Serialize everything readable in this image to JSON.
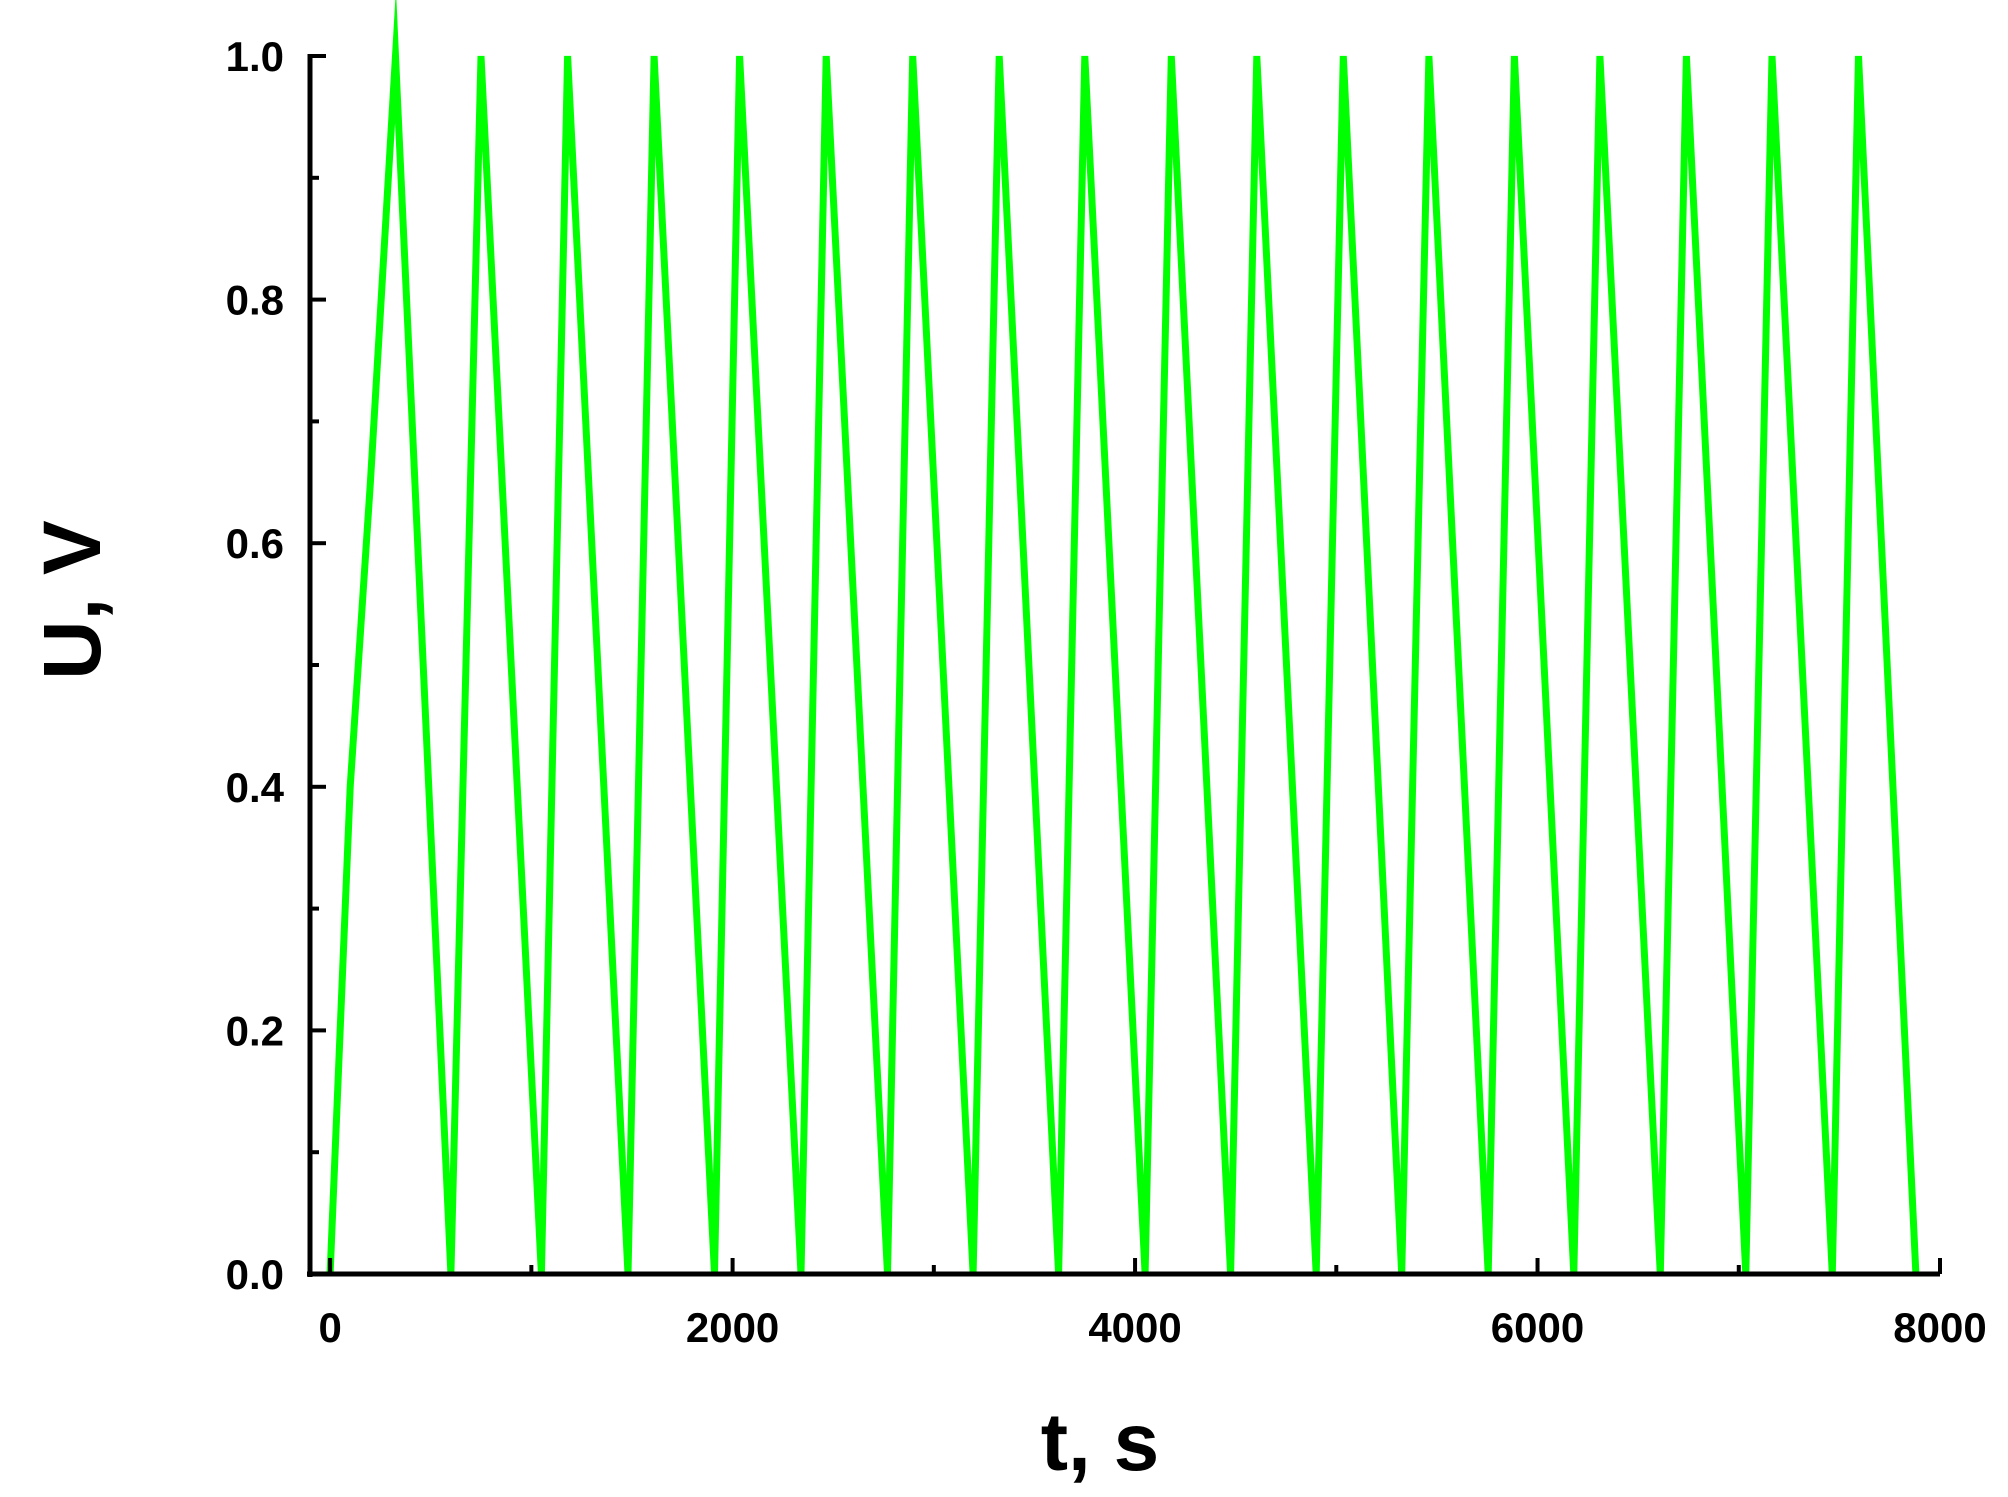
{
  "chart_data": {
    "type": "line",
    "title": "",
    "xlabel": "t, s",
    "ylabel": "U, V",
    "xlim": [
      -100,
      8000
    ],
    "ylim": [
      0.0,
      1.0
    ],
    "x_ticks": [
      0,
      2000,
      4000,
      6000,
      8000
    ],
    "x_tick_labels": [
      "0",
      "2000",
      "4000",
      "6000",
      "8000"
    ],
    "x_minor_ticks": [
      1000,
      3000,
      5000,
      7000
    ],
    "y_ticks": [
      0.0,
      0.2,
      0.4,
      0.6,
      0.8,
      1.0
    ],
    "y_tick_labels": [
      "0.0",
      "0.2",
      "0.4",
      "0.6",
      "0.8",
      "1.0"
    ],
    "y_minor_ticks": [
      0.1,
      0.3,
      0.5,
      0.7,
      0.9
    ],
    "grid": false,
    "legend": "none",
    "series": [
      {
        "color": "#00ff00",
        "x": [
          0,
          100,
          200,
          325,
          600,
          750,
          1050,
          1180,
          1480,
          1610,
          1910,
          2035,
          2340,
          2465,
          2770,
          2895,
          3195,
          3325,
          3620,
          3750,
          4050,
          4180,
          4475,
          4605,
          4900,
          5035,
          5325,
          5460,
          5755,
          5885,
          6180,
          6310,
          6610,
          6740,
          7035,
          7165,
          7465,
          7595,
          7880
        ],
        "y": [
          0.0,
          0.4,
          0.65,
          1.0,
          0.0,
          1.0,
          0.0,
          1.0,
          0.0,
          1.0,
          0.0,
          1.0,
          0.0,
          1.0,
          0.0,
          1.0,
          0.0,
          1.0,
          0.0,
          1.0,
          0.0,
          1.0,
          0.0,
          1.0,
          0.0,
          1.0,
          0.0,
          1.0,
          0.0,
          1.0,
          0.0,
          1.0,
          0.0,
          1.0,
          0.0,
          1.0,
          0.0,
          1.0,
          0.0
        ]
      }
    ]
  }
}
